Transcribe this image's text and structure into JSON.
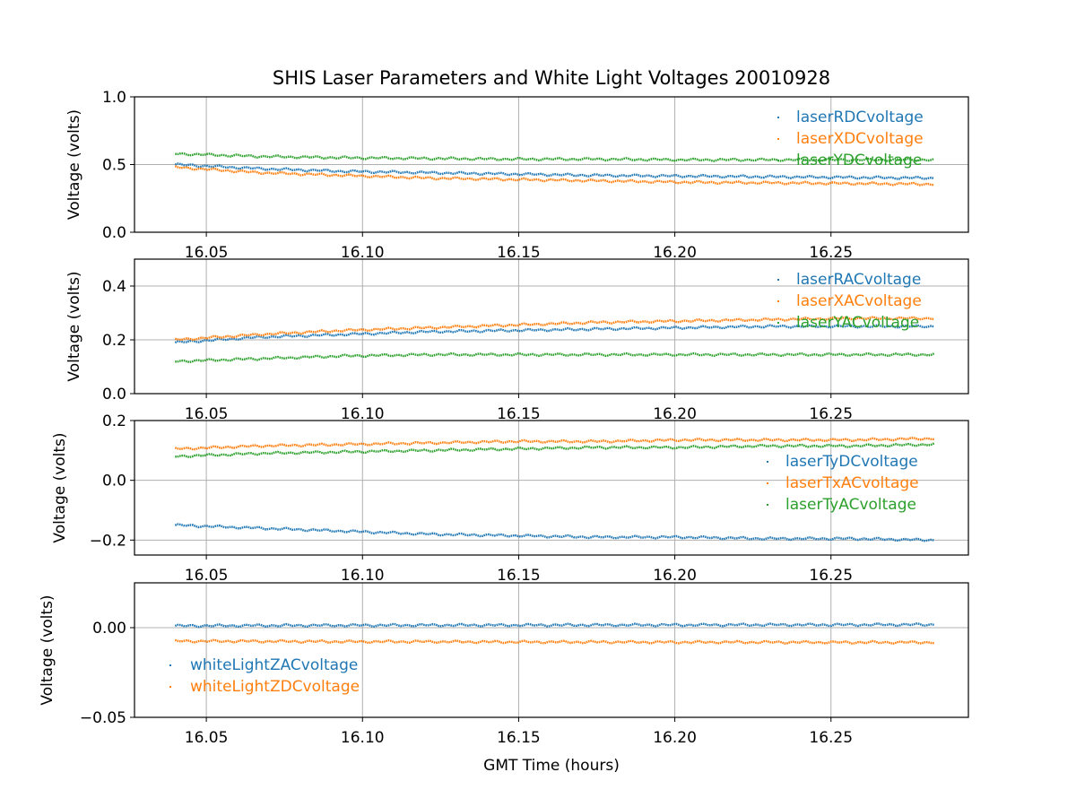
{
  "colors": {
    "blue": "#1f77b4",
    "orange": "#ff7f0e",
    "green": "#2ca02c"
  },
  "chart_data": {
    "type": "line",
    "title": "SHIS Laser Parameters and White Light Voltages 20010928",
    "xlabel": "GMT Time (hours)",
    "xlim": [
      16.027,
      16.294
    ],
    "x_start": 16.04,
    "x_end": 16.283,
    "xticks": [
      "16.05",
      "16.10",
      "16.15",
      "16.20",
      "16.25"
    ],
    "panels": [
      {
        "ylabel": "Voltage (volts)",
        "ylim": [
          0.0,
          1.0
        ],
        "yticks": [
          {
            "v": 0.0,
            "label": "0.0"
          },
          {
            "v": 0.5,
            "label": "0.5"
          },
          {
            "v": 1.0,
            "label": "1.0"
          }
        ],
        "legend_position": "top-right",
        "series": [
          {
            "name": "laserRDCvoltage",
            "color": "#1f77b4",
            "values": [
              0.5,
              0.47,
              0.45,
              0.44,
              0.43,
              0.42,
              0.415,
              0.41,
              0.405,
              0.4
            ]
          },
          {
            "name": "laserXDCvoltage",
            "color": "#ff7f0e",
            "values": [
              0.48,
              0.44,
              0.42,
              0.4,
              0.39,
              0.38,
              0.37,
              0.365,
              0.36,
              0.355
            ]
          },
          {
            "name": "laserYDCvoltage",
            "color": "#2ca02c",
            "values": [
              0.58,
              0.56,
              0.55,
              0.545,
              0.54,
              0.54,
              0.535,
              0.535,
              0.535,
              0.535
            ]
          }
        ]
      },
      {
        "ylabel": "Voltage (volts)",
        "ylim": [
          0.0,
          0.5
        ],
        "yticks": [
          {
            "v": 0.0,
            "label": "0.0"
          },
          {
            "v": 0.2,
            "label": "0.2"
          },
          {
            "v": 0.4,
            "label": "0.4"
          }
        ],
        "legend_position": "top-right",
        "series": [
          {
            "name": "laserRACvoltage",
            "color": "#1f77b4",
            "values": [
              0.19,
              0.21,
              0.22,
              0.23,
              0.235,
              0.24,
              0.245,
              0.25,
              0.25,
              0.25
            ]
          },
          {
            "name": "laserXACvoltage",
            "color": "#ff7f0e",
            "values": [
              0.2,
              0.22,
              0.235,
              0.245,
              0.255,
              0.265,
              0.27,
              0.275,
              0.28,
              0.28
            ]
          },
          {
            "name": "laserYACvoltage",
            "color": "#2ca02c",
            "values": [
              0.12,
              0.13,
              0.14,
              0.145,
              0.145,
              0.145,
              0.145,
              0.145,
              0.145,
              0.145
            ]
          }
        ]
      },
      {
        "ylabel": "Voltage (volts)",
        "ylim": [
          -0.25,
          0.2
        ],
        "yticks": [
          {
            "v": -0.2,
            "label": "−0.2"
          },
          {
            "v": 0.0,
            "label": "0.0"
          },
          {
            "v": 0.2,
            "label": "0.2"
          }
        ],
        "legend_position": "center-right",
        "series": [
          {
            "name": "laserTyDCvoltage",
            "color": "#1f77b4",
            "values": [
              -0.15,
              -0.16,
              -0.17,
              -0.18,
              -0.185,
              -0.19,
              -0.19,
              -0.195,
              -0.195,
              -0.2
            ]
          },
          {
            "name": "laserTxACvoltage",
            "color": "#ff7f0e",
            "values": [
              0.105,
              0.115,
              0.12,
              0.125,
              0.13,
              0.13,
              0.135,
              0.135,
              0.135,
              0.14
            ]
          },
          {
            "name": "laserTyACvoltage",
            "color": "#2ca02c",
            "values": [
              0.08,
              0.09,
              0.095,
              0.1,
              0.105,
              0.11,
              0.11,
              0.115,
              0.115,
              0.12
            ]
          }
        ]
      },
      {
        "ylabel": "Voltage (volts)",
        "ylim": [
          -0.05,
          0.025
        ],
        "yticks": [
          {
            "v": -0.05,
            "label": "−0.05"
          },
          {
            "v": 0.0,
            "label": "0.00"
          }
        ],
        "legend_position": "bottom-left",
        "series": [
          {
            "name": "whiteLightZACvoltage",
            "color": "#1f77b4",
            "values": [
              0.001,
              0.0012,
              0.0013,
              0.0014,
              0.0014,
              0.0015,
              0.0015,
              0.0016,
              0.0016,
              0.0017
            ]
          },
          {
            "name": "whiteLightZDCvoltage",
            "color": "#ff7f0e",
            "values": [
              -0.0075,
              -0.0076,
              -0.0078,
              -0.0078,
              -0.008,
              -0.008,
              -0.0081,
              -0.0081,
              -0.0082,
              -0.0082
            ]
          }
        ]
      }
    ]
  }
}
